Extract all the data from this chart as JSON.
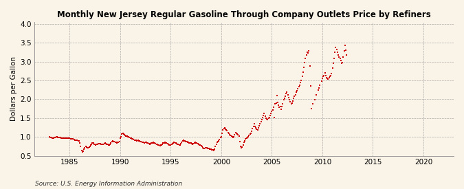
{
  "title": "Monthly New Jersey Regular Gasoline Through Company Outlets Price by Refiners",
  "ylabel": "Dollars per Gallon",
  "source": "Source: U.S. Energy Information Administration",
  "bg_color": "#FAF4E8",
  "line_color": "#CC0000",
  "marker_color": "#CC0000",
  "xlim": [
    1981.5,
    2023
  ],
  "ylim": [
    0.5,
    4.05
  ],
  "yticks": [
    0.5,
    1.0,
    1.5,
    2.0,
    2.5,
    3.0,
    3.5,
    4.0
  ],
  "xticks": [
    1985,
    1990,
    1995,
    2000,
    2005,
    2010,
    2015,
    2020
  ],
  "data": [
    [
      1983.0,
      1.0
    ],
    [
      1983.08,
      0.98
    ],
    [
      1983.17,
      0.98
    ],
    [
      1983.25,
      0.97
    ],
    [
      1983.33,
      0.97
    ],
    [
      1983.42,
      0.97
    ],
    [
      1983.5,
      0.98
    ],
    [
      1983.58,
      0.99
    ],
    [
      1983.67,
      1.0
    ],
    [
      1983.75,
      1.0
    ],
    [
      1983.83,
      0.99
    ],
    [
      1983.92,
      0.99
    ],
    [
      1984.0,
      0.99
    ],
    [
      1984.08,
      0.98
    ],
    [
      1984.17,
      0.97
    ],
    [
      1984.25,
      0.97
    ],
    [
      1984.33,
      0.97
    ],
    [
      1984.42,
      0.96
    ],
    [
      1984.5,
      0.96
    ],
    [
      1984.58,
      0.96
    ],
    [
      1984.67,
      0.96
    ],
    [
      1984.75,
      0.97
    ],
    [
      1984.83,
      0.97
    ],
    [
      1984.92,
      0.96
    ],
    [
      1985.0,
      0.96
    ],
    [
      1985.08,
      0.95
    ],
    [
      1985.17,
      0.94
    ],
    [
      1985.25,
      0.94
    ],
    [
      1985.33,
      0.94
    ],
    [
      1985.42,
      0.93
    ],
    [
      1985.5,
      0.92
    ],
    [
      1985.58,
      0.91
    ],
    [
      1985.67,
      0.91
    ],
    [
      1985.75,
      0.92
    ],
    [
      1985.83,
      0.9
    ],
    [
      1985.92,
      0.89
    ],
    [
      1986.0,
      0.84
    ],
    [
      1986.08,
      0.74
    ],
    [
      1986.17,
      0.64
    ],
    [
      1986.25,
      0.61
    ],
    [
      1986.33,
      0.62
    ],
    [
      1986.42,
      0.67
    ],
    [
      1986.5,
      0.72
    ],
    [
      1986.58,
      0.74
    ],
    [
      1986.67,
      0.73
    ],
    [
      1986.75,
      0.72
    ],
    [
      1986.83,
      0.71
    ],
    [
      1986.92,
      0.73
    ],
    [
      1987.0,
      0.75
    ],
    [
      1987.08,
      0.79
    ],
    [
      1987.17,
      0.81
    ],
    [
      1987.25,
      0.84
    ],
    [
      1987.33,
      0.83
    ],
    [
      1987.42,
      0.81
    ],
    [
      1987.5,
      0.8
    ],
    [
      1987.58,
      0.79
    ],
    [
      1987.67,
      0.8
    ],
    [
      1987.75,
      0.81
    ],
    [
      1987.83,
      0.82
    ],
    [
      1987.92,
      0.82
    ],
    [
      1988.0,
      0.82
    ],
    [
      1988.08,
      0.81
    ],
    [
      1988.17,
      0.8
    ],
    [
      1988.25,
      0.8
    ],
    [
      1988.33,
      0.8
    ],
    [
      1988.42,
      0.82
    ],
    [
      1988.5,
      0.83
    ],
    [
      1988.58,
      0.82
    ],
    [
      1988.67,
      0.81
    ],
    [
      1988.75,
      0.8
    ],
    [
      1988.83,
      0.79
    ],
    [
      1988.92,
      0.79
    ],
    [
      1989.0,
      0.8
    ],
    [
      1989.08,
      0.84
    ],
    [
      1989.17,
      0.87
    ],
    [
      1989.25,
      0.9
    ],
    [
      1989.33,
      0.88
    ],
    [
      1989.42,
      0.87
    ],
    [
      1989.5,
      0.86
    ],
    [
      1989.58,
      0.85
    ],
    [
      1989.67,
      0.84
    ],
    [
      1989.75,
      0.85
    ],
    [
      1989.83,
      0.86
    ],
    [
      1989.92,
      0.87
    ],
    [
      1990.0,
      0.96
    ],
    [
      1990.08,
      1.01
    ],
    [
      1990.17,
      1.07
    ],
    [
      1990.25,
      1.09
    ],
    [
      1990.33,
      1.07
    ],
    [
      1990.42,
      1.05
    ],
    [
      1990.5,
      1.04
    ],
    [
      1990.58,
      1.03
    ],
    [
      1990.67,
      1.02
    ],
    [
      1990.75,
      1.01
    ],
    [
      1990.83,
      1.0
    ],
    [
      1990.92,
      0.98
    ],
    [
      1991.0,
      0.97
    ],
    [
      1991.08,
      0.96
    ],
    [
      1991.17,
      0.95
    ],
    [
      1991.25,
      0.94
    ],
    [
      1991.33,
      0.93
    ],
    [
      1991.42,
      0.92
    ],
    [
      1991.5,
      0.91
    ],
    [
      1991.58,
      0.91
    ],
    [
      1991.67,
      0.9
    ],
    [
      1991.75,
      0.91
    ],
    [
      1991.83,
      0.9
    ],
    [
      1991.92,
      0.89
    ],
    [
      1992.0,
      0.88
    ],
    [
      1992.08,
      0.87
    ],
    [
      1992.17,
      0.86
    ],
    [
      1992.25,
      0.86
    ],
    [
      1992.33,
      0.85
    ],
    [
      1992.42,
      0.84
    ],
    [
      1992.5,
      0.85
    ],
    [
      1992.58,
      0.85
    ],
    [
      1992.67,
      0.84
    ],
    [
      1992.75,
      0.83
    ],
    [
      1992.83,
      0.82
    ],
    [
      1992.92,
      0.81
    ],
    [
      1993.0,
      0.82
    ],
    [
      1993.08,
      0.83
    ],
    [
      1993.17,
      0.84
    ],
    [
      1993.25,
      0.85
    ],
    [
      1993.33,
      0.84
    ],
    [
      1993.42,
      0.83
    ],
    [
      1993.5,
      0.82
    ],
    [
      1993.58,
      0.81
    ],
    [
      1993.67,
      0.8
    ],
    [
      1993.75,
      0.79
    ],
    [
      1993.83,
      0.78
    ],
    [
      1993.92,
      0.77
    ],
    [
      1994.0,
      0.78
    ],
    [
      1994.08,
      0.79
    ],
    [
      1994.17,
      0.8
    ],
    [
      1994.25,
      0.83
    ],
    [
      1994.33,
      0.84
    ],
    [
      1994.42,
      0.85
    ],
    [
      1994.5,
      0.84
    ],
    [
      1994.58,
      0.83
    ],
    [
      1994.67,
      0.82
    ],
    [
      1994.75,
      0.8
    ],
    [
      1994.83,
      0.79
    ],
    [
      1994.92,
      0.78
    ],
    [
      1995.0,
      0.79
    ],
    [
      1995.08,
      0.8
    ],
    [
      1995.17,
      0.82
    ],
    [
      1995.25,
      0.84
    ],
    [
      1995.33,
      0.85
    ],
    [
      1995.42,
      0.84
    ],
    [
      1995.5,
      0.83
    ],
    [
      1995.58,
      0.82
    ],
    [
      1995.67,
      0.81
    ],
    [
      1995.75,
      0.8
    ],
    [
      1995.83,
      0.79
    ],
    [
      1995.92,
      0.78
    ],
    [
      1996.0,
      0.82
    ],
    [
      1996.08,
      0.85
    ],
    [
      1996.17,
      0.89
    ],
    [
      1996.25,
      0.92
    ],
    [
      1996.33,
      0.9
    ],
    [
      1996.42,
      0.89
    ],
    [
      1996.5,
      0.88
    ],
    [
      1996.58,
      0.87
    ],
    [
      1996.67,
      0.86
    ],
    [
      1996.75,
      0.85
    ],
    [
      1996.83,
      0.84
    ],
    [
      1996.92,
      0.83
    ],
    [
      1997.0,
      0.83
    ],
    [
      1997.08,
      0.82
    ],
    [
      1997.17,
      0.81
    ],
    [
      1997.25,
      0.82
    ],
    [
      1997.33,
      0.84
    ],
    [
      1997.42,
      0.85
    ],
    [
      1997.5,
      0.84
    ],
    [
      1997.58,
      0.83
    ],
    [
      1997.67,
      0.82
    ],
    [
      1997.75,
      0.8
    ],
    [
      1997.83,
      0.79
    ],
    [
      1997.92,
      0.78
    ],
    [
      1998.0,
      0.77
    ],
    [
      1998.08,
      0.74
    ],
    [
      1998.17,
      0.71
    ],
    [
      1998.25,
      0.69
    ],
    [
      1998.33,
      0.7
    ],
    [
      1998.42,
      0.71
    ],
    [
      1998.5,
      0.72
    ],
    [
      1998.58,
      0.71
    ],
    [
      1998.67,
      0.7
    ],
    [
      1998.75,
      0.69
    ],
    [
      1998.83,
      0.68
    ],
    [
      1998.92,
      0.67
    ],
    [
      1999.0,
      0.67
    ],
    [
      1999.08,
      0.66
    ],
    [
      1999.17,
      0.65
    ],
    [
      1999.25,
      0.64
    ],
    [
      1999.33,
      0.68
    ],
    [
      1999.42,
      0.74
    ],
    [
      1999.5,
      0.8
    ],
    [
      1999.58,
      0.85
    ],
    [
      1999.67,
      0.88
    ],
    [
      1999.75,
      0.9
    ],
    [
      1999.83,
      0.93
    ],
    [
      1999.92,
      0.98
    ],
    [
      2000.0,
      1.01
    ],
    [
      2000.08,
      1.1
    ],
    [
      2000.17,
      1.18
    ],
    [
      2000.25,
      1.22
    ],
    [
      2000.33,
      1.24
    ],
    [
      2000.42,
      1.21
    ],
    [
      2000.5,
      1.19
    ],
    [
      2000.58,
      1.16
    ],
    [
      2000.67,
      1.11
    ],
    [
      2000.75,
      1.09
    ],
    [
      2000.83,
      1.06
    ],
    [
      2000.92,
      1.04
    ],
    [
      2001.0,
      1.03
    ],
    [
      2001.08,
      1.01
    ],
    [
      2001.17,
      0.99
    ],
    [
      2001.25,
      1.01
    ],
    [
      2001.33,
      1.06
    ],
    [
      2001.42,
      1.11
    ],
    [
      2001.5,
      1.09
    ],
    [
      2001.58,
      1.07
    ],
    [
      2001.67,
      1.05
    ],
    [
      2001.75,
      1.03
    ],
    [
      2001.83,
      0.88
    ],
    [
      2001.92,
      0.74
    ],
    [
      2002.0,
      0.72
    ],
    [
      2002.08,
      0.73
    ],
    [
      2002.17,
      0.79
    ],
    [
      2002.25,
      0.86
    ],
    [
      2002.33,
      0.9
    ],
    [
      2002.42,
      0.94
    ],
    [
      2002.5,
      0.97
    ],
    [
      2002.58,
      0.99
    ],
    [
      2002.67,
      1.01
    ],
    [
      2002.75,
      1.04
    ],
    [
      2002.83,
      1.07
    ],
    [
      2002.92,
      1.1
    ],
    [
      2003.0,
      1.15
    ],
    [
      2003.08,
      1.22
    ],
    [
      2003.17,
      1.28
    ],
    [
      2003.25,
      1.35
    ],
    [
      2003.33,
      1.28
    ],
    [
      2003.42,
      1.24
    ],
    [
      2003.5,
      1.21
    ],
    [
      2003.58,
      1.18
    ],
    [
      2003.67,
      1.24
    ],
    [
      2003.75,
      1.3
    ],
    [
      2003.83,
      1.35
    ],
    [
      2003.92,
      1.4
    ],
    [
      2004.0,
      1.46
    ],
    [
      2004.08,
      1.52
    ],
    [
      2004.17,
      1.57
    ],
    [
      2004.25,
      1.62
    ],
    [
      2004.33,
      1.55
    ],
    [
      2004.42,
      1.5
    ],
    [
      2004.5,
      1.48
    ],
    [
      2004.58,
      1.46
    ],
    [
      2004.67,
      1.49
    ],
    [
      2004.75,
      1.52
    ],
    [
      2004.83,
      1.56
    ],
    [
      2004.92,
      1.62
    ],
    [
      2005.0,
      1.67
    ],
    [
      2005.08,
      1.72
    ],
    [
      2005.17,
      1.78
    ],
    [
      2005.25,
      1.52
    ],
    [
      2005.33,
      1.87
    ],
    [
      2005.42,
      1.9
    ],
    [
      2005.5,
      2.1
    ],
    [
      2005.58,
      1.92
    ],
    [
      2005.67,
      1.84
    ],
    [
      2005.75,
      1.78
    ],
    [
      2005.83,
      1.8
    ],
    [
      2005.92,
      1.74
    ],
    [
      2006.0,
      1.8
    ],
    [
      2006.08,
      1.88
    ],
    [
      2006.17,
      1.98
    ],
    [
      2006.25,
      2.02
    ],
    [
      2006.33,
      2.08
    ],
    [
      2006.42,
      2.15
    ],
    [
      2006.5,
      2.18
    ],
    [
      2006.58,
      2.12
    ],
    [
      2006.67,
      2.05
    ],
    [
      2006.75,
      1.98
    ],
    [
      2006.83,
      1.93
    ],
    [
      2006.92,
      1.88
    ],
    [
      2007.0,
      1.9
    ],
    [
      2007.08,
      1.95
    ],
    [
      2007.17,
      2.02
    ],
    [
      2007.25,
      2.08
    ],
    [
      2007.33,
      2.12
    ],
    [
      2007.42,
      2.18
    ],
    [
      2007.5,
      2.22
    ],
    [
      2007.58,
      2.28
    ],
    [
      2007.67,
      2.33
    ],
    [
      2007.75,
      2.38
    ],
    [
      2007.83,
      2.45
    ],
    [
      2007.92,
      2.5
    ],
    [
      2008.0,
      2.6
    ],
    [
      2008.08,
      2.72
    ],
    [
      2008.17,
      2.85
    ],
    [
      2008.25,
      2.98
    ],
    [
      2008.33,
      3.08
    ],
    [
      2008.42,
      3.18
    ],
    [
      2008.5,
      3.25
    ],
    [
      2008.58,
      3.22
    ],
    [
      2008.67,
      3.28
    ],
    [
      2008.75,
      2.88
    ],
    [
      2008.83,
      2.35
    ],
    [
      2008.92,
      1.75
    ],
    [
      2009.08,
      1.88
    ],
    [
      2009.25,
      1.98
    ],
    [
      2009.42,
      2.12
    ],
    [
      2009.58,
      2.25
    ],
    [
      2009.67,
      2.3
    ],
    [
      2009.75,
      2.38
    ],
    [
      2009.92,
      2.48
    ],
    [
      2010.0,
      2.55
    ],
    [
      2010.08,
      2.6
    ],
    [
      2010.17,
      2.62
    ],
    [
      2010.25,
      2.7
    ],
    [
      2010.33,
      2.62
    ],
    [
      2010.42,
      2.58
    ],
    [
      2010.5,
      2.55
    ],
    [
      2010.58,
      2.53
    ],
    [
      2010.67,
      2.57
    ],
    [
      2010.75,
      2.6
    ],
    [
      2010.83,
      2.63
    ],
    [
      2010.92,
      2.68
    ],
    [
      2011.0,
      2.82
    ],
    [
      2011.08,
      2.95
    ],
    [
      2011.17,
      3.08
    ],
    [
      2011.25,
      3.25
    ],
    [
      2011.33,
      3.38
    ],
    [
      2011.42,
      3.32
    ],
    [
      2011.5,
      3.25
    ],
    [
      2011.58,
      3.18
    ],
    [
      2011.67,
      3.12
    ],
    [
      2011.75,
      3.08
    ],
    [
      2011.83,
      3.03
    ],
    [
      2011.92,
      2.95
    ],
    [
      2012.0,
      2.98
    ],
    [
      2012.08,
      3.12
    ],
    [
      2012.17,
      3.28
    ],
    [
      2012.25,
      3.42
    ],
    [
      2012.33,
      3.3
    ],
    [
      2012.42,
      3.18
    ]
  ]
}
